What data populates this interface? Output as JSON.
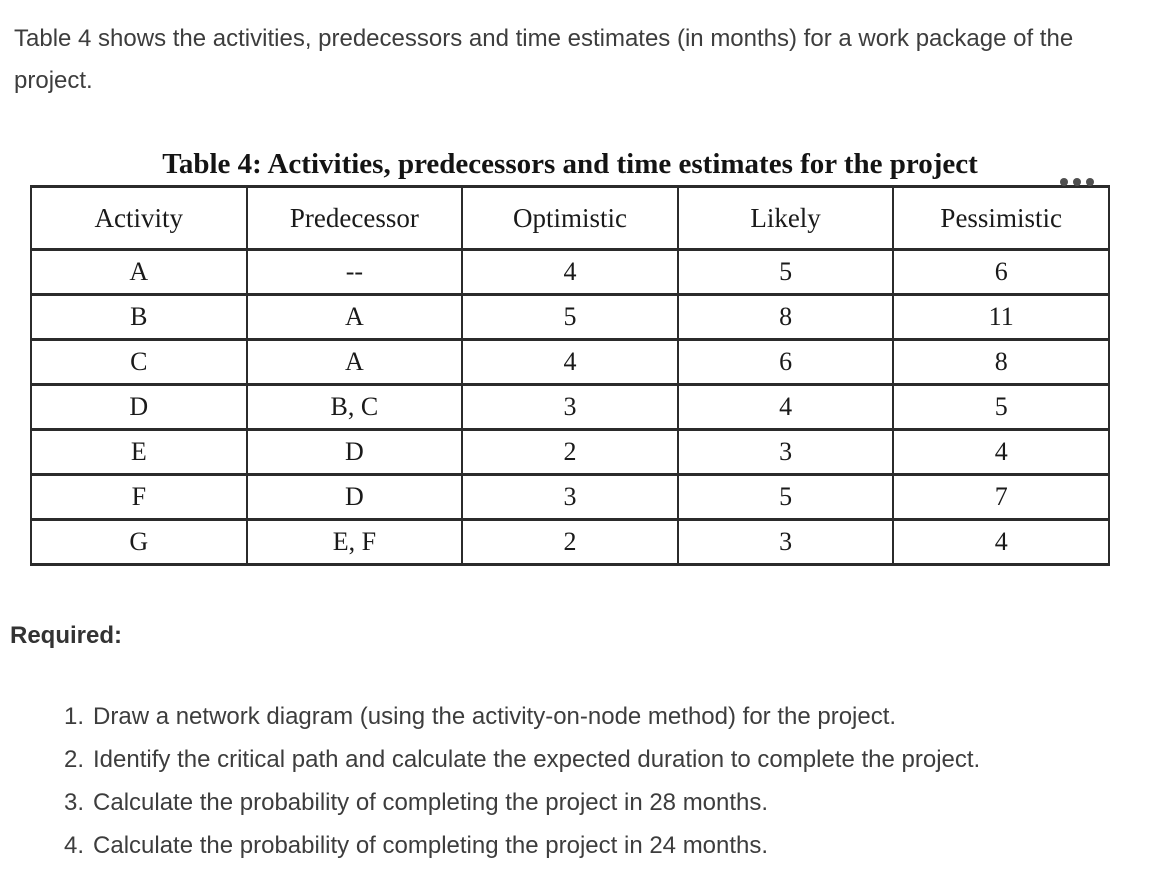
{
  "page": {
    "intro": "Table 4 shows the activities, predecessors and time estimates (in months) for a work package of the project.",
    "required_label": "Required:"
  },
  "table": {
    "title": "Table 4: Activities, predecessors and time estimates for the project",
    "headers": [
      "Activity",
      "Predecessor",
      "Optimistic",
      "Likely",
      "Pessimistic"
    ],
    "rows": [
      [
        "A",
        "--",
        "4",
        "5",
        "6"
      ],
      [
        "B",
        "A",
        "5",
        "8",
        "11"
      ],
      [
        "C",
        "A",
        "4",
        "6",
        "8"
      ],
      [
        "D",
        "B, C",
        "3",
        "4",
        "5"
      ],
      [
        "E",
        "D",
        "2",
        "3",
        "4"
      ],
      [
        "F",
        "D",
        "3",
        "5",
        "7"
      ],
      [
        "G",
        "E, F",
        "2",
        "3",
        "4"
      ]
    ]
  },
  "icons": {
    "more_options": "ellipsis-dots"
  },
  "questions": [
    {
      "num": "1.",
      "text": "Draw a network diagram (using the activity-on-node method) for the project."
    },
    {
      "num": "2.",
      "text": "Identify the critical path and calculate the expected duration to complete the project."
    },
    {
      "num": "3.",
      "text": "Calculate the probability of completing the project in 28 months."
    },
    {
      "num": "4.",
      "text": "Calculate the probability of completing the project in 24 months."
    }
  ],
  "colors": {
    "background": "#ffffff",
    "body_text": "#3d3d3d",
    "table_text": "#1a1a1a",
    "table_border": "#2b2b2b",
    "dots": "#4f4f4f"
  }
}
